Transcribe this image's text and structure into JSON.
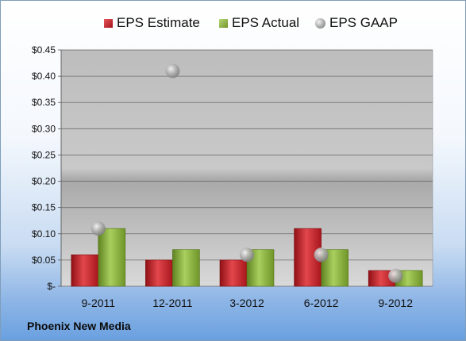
{
  "company": "Phoenix New Media",
  "chart_data": {
    "type": "bar",
    "categories": [
      "9-2011",
      "12-2011",
      "3-2012",
      "6-2012",
      "9-2012"
    ],
    "series": [
      {
        "name": "EPS Estimate",
        "kind": "bar",
        "color": "#c0242a",
        "values": [
          0.06,
          0.05,
          0.05,
          0.11,
          0.03
        ]
      },
      {
        "name": "EPS Actual",
        "kind": "bar",
        "color": "#8cb43c",
        "values": [
          0.11,
          0.07,
          0.07,
          0.07,
          0.03
        ]
      },
      {
        "name": "EPS GAAP",
        "kind": "scatter",
        "color": "#a9a9a9",
        "values": [
          0.11,
          0.41,
          0.06,
          0.06,
          0.02
        ]
      }
    ],
    "ylim": [
      0,
      0.45
    ],
    "yticks": [
      0,
      0.05,
      0.1,
      0.15,
      0.2,
      0.25,
      0.3,
      0.35,
      0.4,
      0.45
    ],
    "ytick_labels": [
      "$-",
      "$0.05",
      "$0.10",
      "$0.15",
      "$0.20",
      "$0.25",
      "$0.30",
      "$0.35",
      "$0.40",
      "$0.45"
    ],
    "grid": true,
    "legend": "top"
  }
}
